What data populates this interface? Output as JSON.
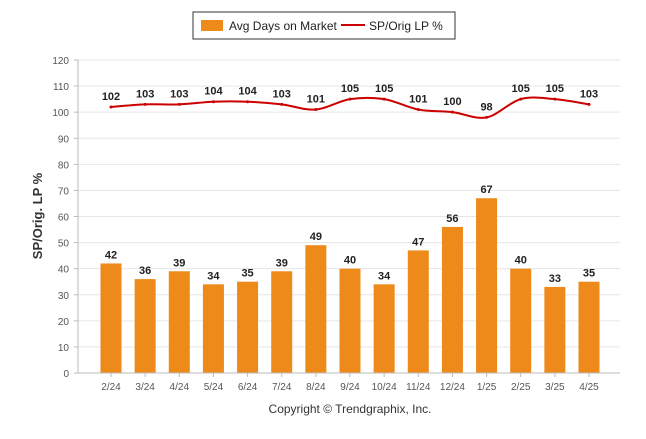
{
  "chart_data": {
    "type": "bar",
    "categories": [
      "2/24",
      "3/24",
      "4/24",
      "5/24",
      "6/24",
      "7/24",
      "8/24",
      "9/24",
      "10/24",
      "11/24",
      "12/24",
      "1/25",
      "2/25",
      "3/25",
      "4/25"
    ],
    "series": [
      {
        "name": "Avg Days on Market",
        "type": "bar",
        "color": "#EE8A1A",
        "values": [
          42,
          36,
          39,
          34,
          35,
          39,
          49,
          40,
          34,
          47,
          56,
          67,
          40,
          33,
          35
        ]
      },
      {
        "name": "SP/Orig LP %",
        "type": "line",
        "color": "#CC0000",
        "values": [
          102,
          103,
          103,
          104,
          104,
          103,
          101,
          105,
          105,
          101,
          100,
          98,
          105,
          105,
          103
        ]
      }
    ],
    "ylabel": "SP/Orig. LP %",
    "ylim": [
      0,
      120
    ],
    "yticks": [
      0,
      10,
      20,
      30,
      40,
      50,
      60,
      70,
      80,
      90,
      100,
      110,
      120
    ],
    "grid": true,
    "legend_position": "top-center"
  },
  "footer": {
    "copyright": "Copyright © Trendgraphix, Inc."
  }
}
